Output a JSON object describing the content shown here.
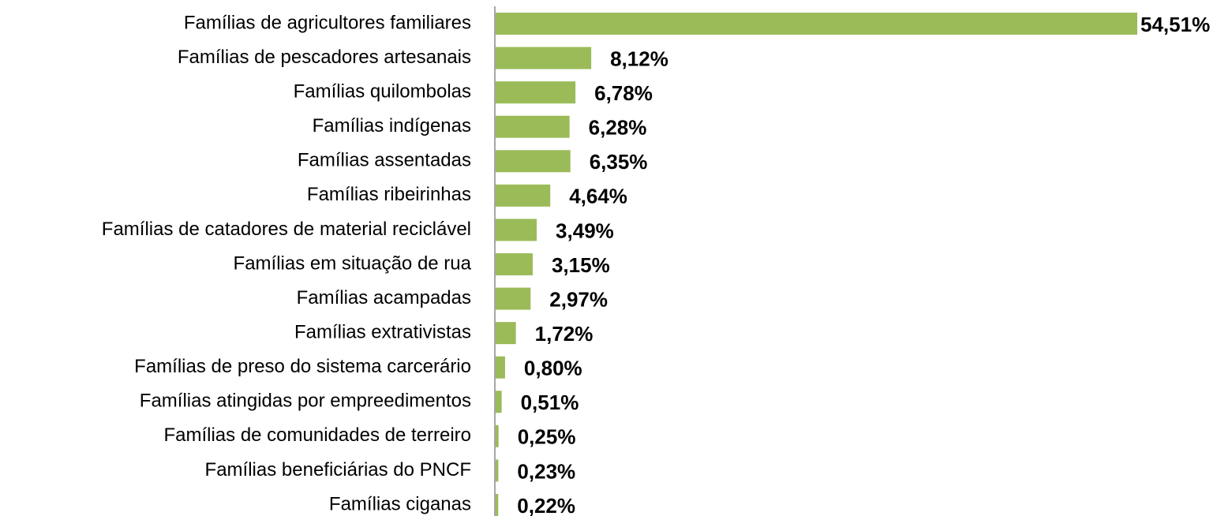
{
  "chart_data": {
    "type": "bar",
    "orientation": "horizontal",
    "color": "#9bbb59",
    "categories": [
      "Famílias de agricultores familiares",
      "Famílias de pescadores artesanais",
      "Famílias quilombolas",
      "Famílias indígenas",
      "Famílias assentadas",
      "Famílias ribeirinhas",
      "Famílias de catadores de material reciclável",
      "Famílias em situação de rua",
      "Famílias acampadas",
      "Famílias extrativistas",
      "Famílias de preso do sistema carcerário",
      "Famílias atingidas por empreedimentos",
      "Famílias de comunidades de terreiro",
      "Famílias beneficiárias do PNCF",
      "Famílias ciganas"
    ],
    "values": [
      54.51,
      8.12,
      6.78,
      6.28,
      6.35,
      4.64,
      3.49,
      3.15,
      2.97,
      1.72,
      0.8,
      0.51,
      0.25,
      0.23,
      0.22
    ],
    "value_labels": [
      "54,51%",
      "8,12%",
      "6,78%",
      "6,28%",
      "6,35%",
      "4,64%",
      "3,49%",
      "3,15%",
      "2,97%",
      "1,72%",
      "0,80%",
      "0,51%",
      "0,25%",
      "0,23%",
      "0,22%"
    ]
  }
}
